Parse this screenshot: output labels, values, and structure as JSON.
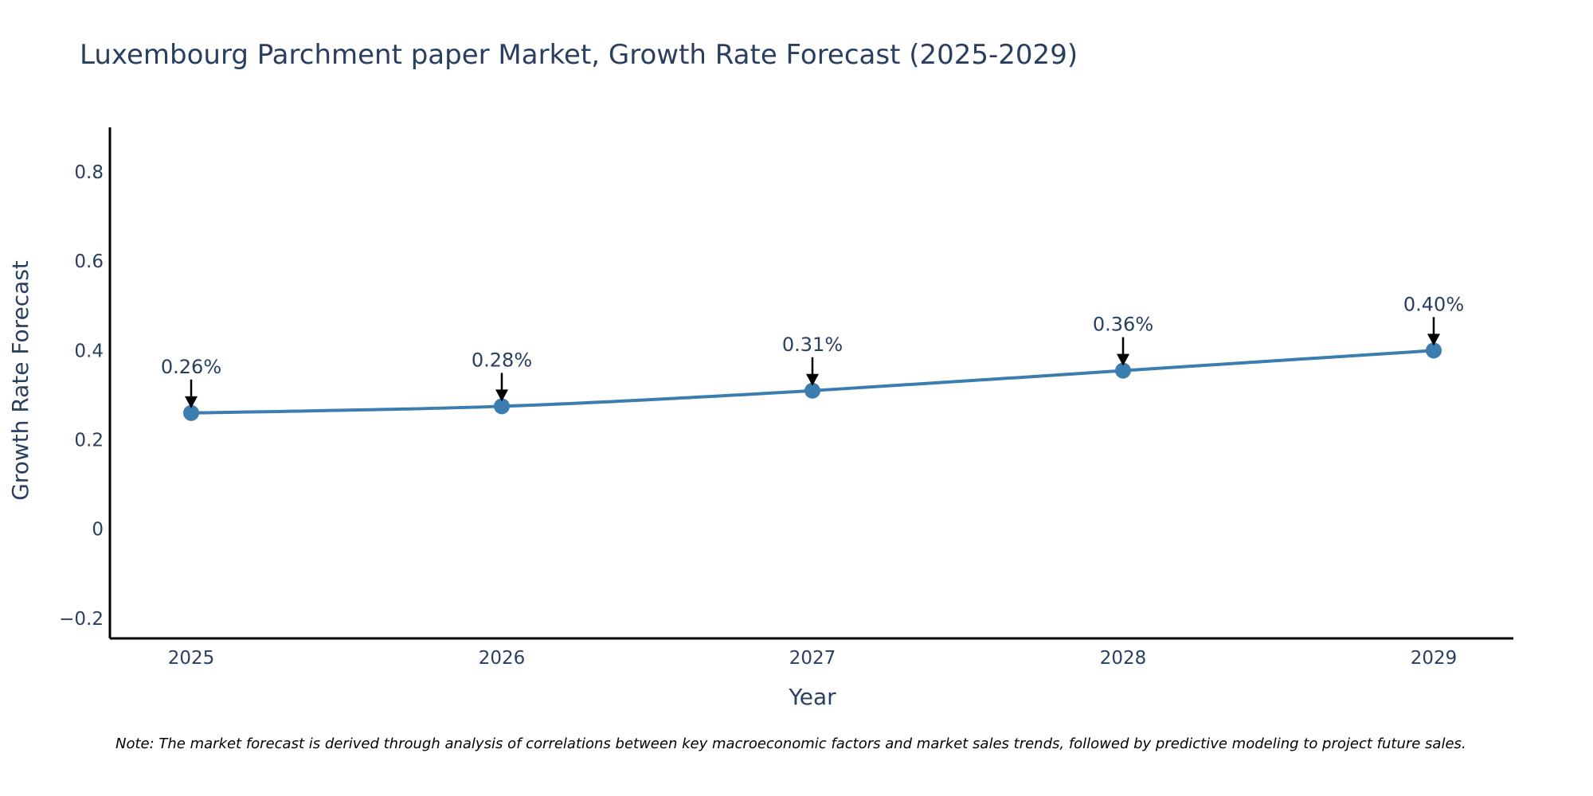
{
  "colors": {
    "line": "#3c7db0",
    "marker": "#3c7db0",
    "axis": "#000000",
    "text": "#2a3f5f",
    "arrow": "#000000"
  },
  "chart_data": {
    "type": "line",
    "title": "Luxembourg Parchment paper Market, Growth Rate Forecast (2025-2029)",
    "xlabel": "Year",
    "ylabel": "Growth Rate Forecast",
    "categories": [
      "2025",
      "2026",
      "2027",
      "2028",
      "2029"
    ],
    "series": [
      {
        "name": "Growth Rate Forecast",
        "values": [
          0.26,
          0.275,
          0.31,
          0.355,
          0.4
        ]
      }
    ],
    "data_labels": [
      "0.26%",
      "0.28%",
      "0.31%",
      "0.36%",
      "0.40%"
    ],
    "ylim": [
      -0.245,
      0.9
    ],
    "yticks": [
      -0.2,
      0,
      0.2,
      0.4,
      0.6,
      0.8
    ],
    "ytick_labels": [
      "−0.2",
      "0",
      "0.2",
      "0.4",
      "0.6",
      "0.8"
    ],
    "grid": false,
    "legend": "none"
  },
  "note": "Note: The market forecast is derived through analysis of correlations between key macroeconomic factors and market sales trends, followed by predictive modeling to project future sales."
}
